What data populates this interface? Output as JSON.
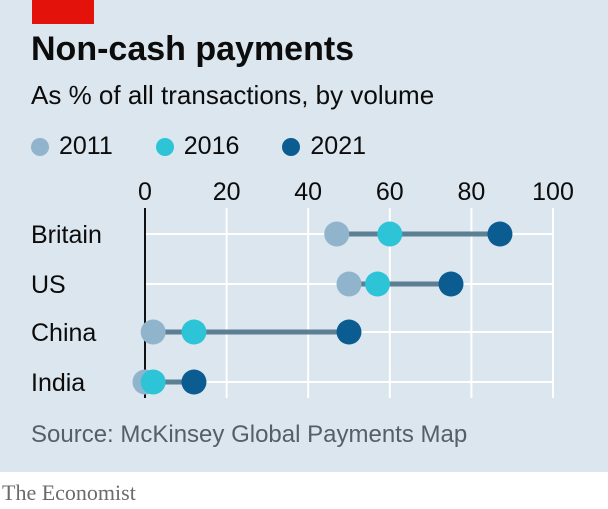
{
  "header": {
    "title": "Non-cash payments",
    "subtitle": "As % of all transactions, by volume"
  },
  "legend": [
    {
      "label": "2011",
      "color": "#8fb4cc"
    },
    {
      "label": "2016",
      "color": "#2ec4d8"
    },
    {
      "label": "2021",
      "color": "#0b5d91"
    }
  ],
  "footer": {
    "source": "Source: McKinsey Global Payments Map",
    "brand": "The Economist"
  },
  "colors": {
    "background": "#dbe6ee",
    "accent": "#e3120b",
    "connector": "#5d7f93",
    "grid": "#ffffff"
  },
  "chart_data": {
    "type": "scatter",
    "title": "Non-cash payments",
    "subtitle": "As % of all transactions, by volume",
    "categories": [
      "Britain",
      "US",
      "China",
      "India"
    ],
    "series": [
      {
        "name": "2011",
        "values": [
          47,
          50,
          2,
          0
        ]
      },
      {
        "name": "2016",
        "values": [
          60,
          57,
          12,
          2
        ]
      },
      {
        "name": "2021",
        "values": [
          87,
          75,
          50,
          12
        ]
      }
    ],
    "xlim": [
      0,
      100
    ],
    "xticks": [
      "0",
      "20",
      "40",
      "60",
      "80",
      "100"
    ],
    "grid": true,
    "legend_position": "top"
  }
}
